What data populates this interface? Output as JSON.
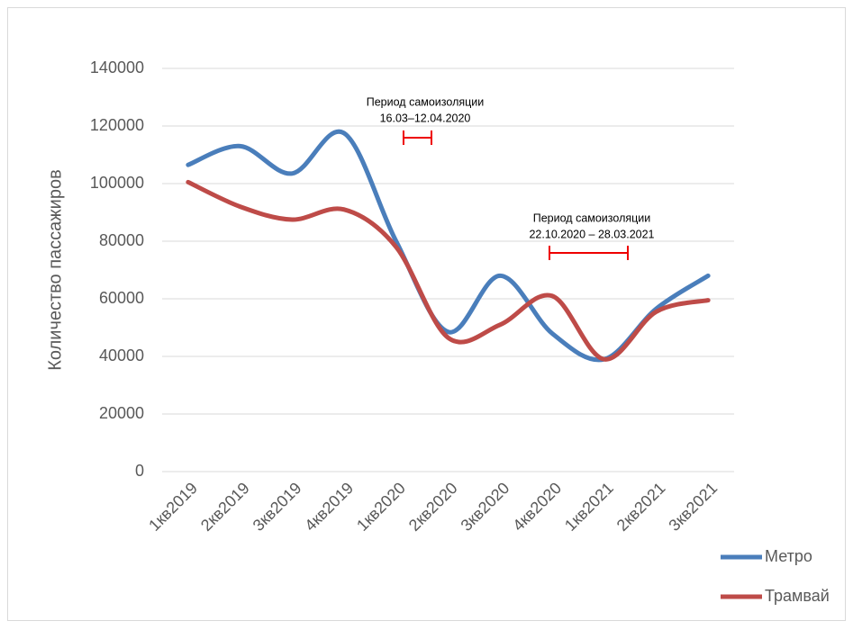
{
  "chart_data": {
    "type": "line",
    "y_label": "Количество пассажиров",
    "categories": [
      "1кв2019",
      "2кв2019",
      "3кв2019",
      "4кв2019",
      "1кв2020",
      "2кв2020",
      "3кв2020",
      "4кв2020",
      "1кв2021",
      "2кв2021",
      "3кв2021"
    ],
    "series": [
      {
        "name": "Метро",
        "color": "#4a7ebb",
        "values": [
          106500,
          113000,
          103500,
          117500,
          80000,
          48500,
          68000,
          48000,
          39000,
          56500,
          68000
        ]
      },
      {
        "name": "Трамвай",
        "color": "#be4b48",
        "values": [
          100500,
          92000,
          87500,
          91000,
          78000,
          46500,
          51000,
          61000,
          39000,
          55500,
          59500
        ]
      }
    ],
    "ylim": [
      0,
      140000
    ],
    "yticks": [
      0,
      20000,
      40000,
      60000,
      80000,
      100000,
      120000,
      140000
    ],
    "grid": true,
    "smooth": true,
    "legend": "bottom-right",
    "annotations": [
      [
        "Период самоизоляции",
        "16.03–12.04.2020"
      ],
      [
        "Период самоизоляции",
        "22.10.2020 – 28.03.2021"
      ]
    ]
  }
}
